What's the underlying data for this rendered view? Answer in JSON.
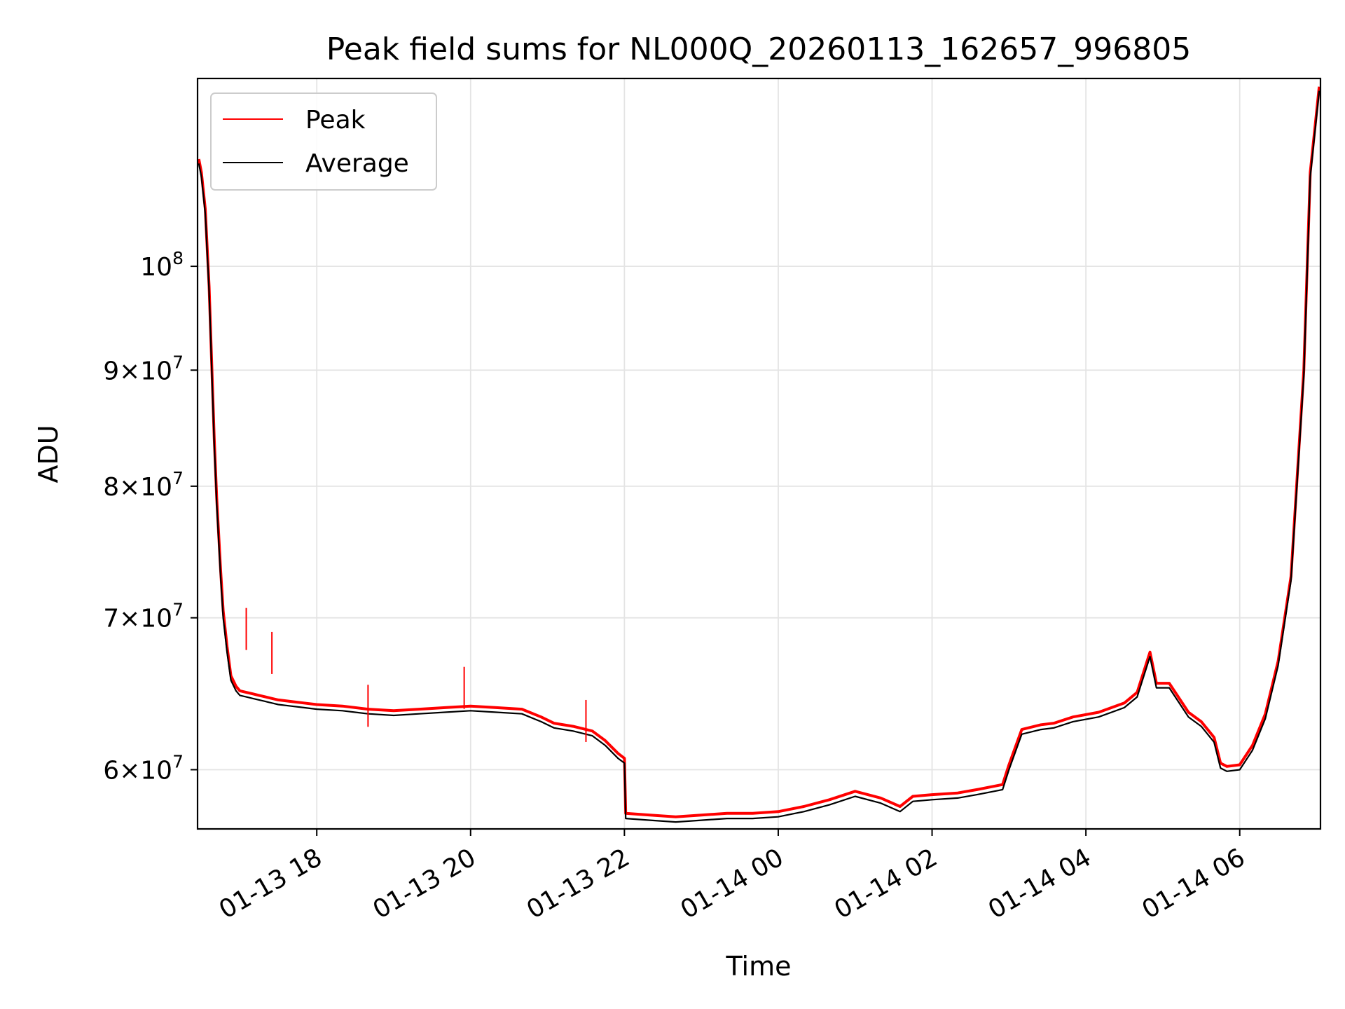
{
  "chart_data": {
    "type": "line",
    "title": "Peak field sums for NL000Q_20260113_162657_996805",
    "xlabel": "Time",
    "ylabel": "ADU",
    "yscale": "log",
    "grid": true,
    "legend_position": "upper-left",
    "xlim": [
      "2026-01-13 16:27",
      "2026-01-14 07:03"
    ],
    "ylim": [
      56500000,
      121000000
    ],
    "x_ticks": [
      {
        "t": "2026-01-13 18:00",
        "label": "01-13 18"
      },
      {
        "t": "2026-01-13 20:00",
        "label": "01-13 20"
      },
      {
        "t": "2026-01-13 22:00",
        "label": "01-13 22"
      },
      {
        "t": "2026-01-14 00:00",
        "label": "01-14 00"
      },
      {
        "t": "2026-01-14 02:00",
        "label": "01-14 02"
      },
      {
        "t": "2026-01-14 04:00",
        "label": "01-14 04"
      },
      {
        "t": "2026-01-14 06:00",
        "label": "01-14 06"
      }
    ],
    "y_ticks": [
      {
        "value": 60000000,
        "mantissa": "6",
        "base": "10",
        "exp": "7"
      },
      {
        "value": 70000000,
        "mantissa": "7",
        "base": "10",
        "exp": "7"
      },
      {
        "value": 80000000,
        "mantissa": "8",
        "base": "10",
        "exp": "7"
      },
      {
        "value": 90000000,
        "mantissa": "9",
        "base": "10",
        "exp": "7"
      },
      {
        "value": 100000000,
        "mantissa": "",
        "base": "10",
        "exp": "8"
      }
    ],
    "series": [
      {
        "name": "Peak",
        "color": "#ff0000",
        "x": [
          "2026-01-13 16:28",
          "2026-01-13 16:30",
          "2026-01-13 16:33",
          "2026-01-13 16:36",
          "2026-01-13 16:40",
          "2026-01-13 16:42",
          "2026-01-13 16:45",
          "2026-01-13 16:47",
          "2026-01-13 16:50",
          "2026-01-13 16:53",
          "2026-01-13 16:57",
          "2026-01-13 17:00",
          "2026-01-13 17:05",
          "2026-01-13 17:10",
          "2026-01-13 17:15",
          "2026-01-13 17:20",
          "2026-01-13 17:25",
          "2026-01-13 17:30",
          "2026-01-13 17:40",
          "2026-01-13 17:50",
          "2026-01-13 18:00",
          "2026-01-13 18:20",
          "2026-01-13 18:40",
          "2026-01-13 19:00",
          "2026-01-13 19:20",
          "2026-01-13 19:40",
          "2026-01-13 20:00",
          "2026-01-13 20:20",
          "2026-01-13 20:40",
          "2026-01-13 20:55",
          "2026-01-13 21:05",
          "2026-01-13 21:20",
          "2026-01-13 21:35",
          "2026-01-13 21:45",
          "2026-01-13 21:55",
          "2026-01-13 22:00",
          "2026-01-13 22:01",
          "2026-01-13 22:20",
          "2026-01-13 22:40",
          "2026-01-13 23:00",
          "2026-01-13 23:20",
          "2026-01-13 23:40",
          "2026-01-14 00:00",
          "2026-01-14 00:20",
          "2026-01-14 00:40",
          "2026-01-14 01:00",
          "2026-01-14 01:20",
          "2026-01-14 01:35",
          "2026-01-14 01:45",
          "2026-01-14 02:00",
          "2026-01-14 02:20",
          "2026-01-14 02:35",
          "2026-01-14 02:55",
          "2026-01-14 03:00",
          "2026-01-14 03:10",
          "2026-01-14 03:25",
          "2026-01-14 03:35",
          "2026-01-14 03:50",
          "2026-01-14 04:10",
          "2026-01-14 04:30",
          "2026-01-14 04:40",
          "2026-01-14 04:50",
          "2026-01-14 04:55",
          "2026-01-14 05:05",
          "2026-01-14 05:20",
          "2026-01-14 05:30",
          "2026-01-14 05:40",
          "2026-01-14 05:45",
          "2026-01-14 05:50",
          "2026-01-14 06:00",
          "2026-01-14 06:10",
          "2026-01-14 06:20",
          "2026-01-14 06:30",
          "2026-01-14 06:40",
          "2026-01-14 06:50",
          "2026-01-14 06:55",
          "2026-01-14 07:02"
        ],
        "y": [
          111500000,
          110000000,
          106000000,
          98000000,
          84000000,
          79000000,
          73500000,
          70500000,
          68000000,
          66000000,
          65300000,
          65000000,
          64900000,
          64800000,
          64700000,
          64600000,
          64500000,
          64400000,
          64300000,
          64200000,
          64100000,
          64000000,
          63800000,
          63700000,
          63800000,
          63900000,
          64000000,
          63900000,
          63800000,
          63300000,
          62900000,
          62700000,
          62400000,
          61800000,
          61000000,
          60700000,
          57400000,
          57300000,
          57200000,
          57300000,
          57400000,
          57400000,
          57500000,
          57800000,
          58200000,
          58700000,
          58300000,
          57800000,
          58400000,
          58500000,
          58600000,
          58800000,
          59100000,
          60300000,
          62500000,
          62800000,
          62900000,
          63300000,
          63600000,
          64200000,
          64900000,
          67600000,
          65500000,
          65500000,
          63600000,
          63000000,
          62000000,
          60400000,
          60200000,
          60300000,
          61500000,
          63500000,
          67000000,
          73000000,
          90000000,
          110000000,
          120000000
        ]
      },
      {
        "name": "Average",
        "color": "#000000",
        "x": [
          "2026-01-13 16:28",
          "2026-01-13 16:30",
          "2026-01-13 16:33",
          "2026-01-13 16:36",
          "2026-01-13 16:40",
          "2026-01-13 16:42",
          "2026-01-13 16:45",
          "2026-01-13 16:47",
          "2026-01-13 16:50",
          "2026-01-13 16:53",
          "2026-01-13 16:57",
          "2026-01-13 17:00",
          "2026-01-13 17:05",
          "2026-01-13 17:10",
          "2026-01-13 17:15",
          "2026-01-13 17:20",
          "2026-01-13 17:25",
          "2026-01-13 17:30",
          "2026-01-13 17:40",
          "2026-01-13 17:50",
          "2026-01-13 18:00",
          "2026-01-13 18:20",
          "2026-01-13 18:40",
          "2026-01-13 19:00",
          "2026-01-13 19:20",
          "2026-01-13 19:40",
          "2026-01-13 20:00",
          "2026-01-13 20:20",
          "2026-01-13 20:40",
          "2026-01-13 20:55",
          "2026-01-13 21:05",
          "2026-01-13 21:20",
          "2026-01-13 21:35",
          "2026-01-13 21:45",
          "2026-01-13 21:55",
          "2026-01-13 22:00",
          "2026-01-13 22:01",
          "2026-01-13 22:20",
          "2026-01-13 22:40",
          "2026-01-13 23:00",
          "2026-01-13 23:20",
          "2026-01-13 23:40",
          "2026-01-14 00:00",
          "2026-01-14 00:20",
          "2026-01-14 00:40",
          "2026-01-14 01:00",
          "2026-01-14 01:20",
          "2026-01-14 01:35",
          "2026-01-14 01:45",
          "2026-01-14 02:00",
          "2026-01-14 02:20",
          "2026-01-14 02:35",
          "2026-01-14 02:55",
          "2026-01-14 03:00",
          "2026-01-14 03:10",
          "2026-01-14 03:25",
          "2026-01-14 03:35",
          "2026-01-14 03:50",
          "2026-01-14 04:10",
          "2026-01-14 04:30",
          "2026-01-14 04:40",
          "2026-01-14 04:50",
          "2026-01-14 04:55",
          "2026-01-14 05:05",
          "2026-01-14 05:20",
          "2026-01-14 05:30",
          "2026-01-14 05:40",
          "2026-01-14 05:45",
          "2026-01-14 05:50",
          "2026-01-14 06:00",
          "2026-01-14 06:10",
          "2026-01-14 06:20",
          "2026-01-14 06:30",
          "2026-01-14 06:40",
          "2026-01-14 06:50",
          "2026-01-14 06:55",
          "2026-01-14 07:02"
        ],
        "y": [
          111000000,
          109500000,
          105500000,
          97500000,
          83500000,
          78500000,
          73000000,
          70000000,
          67600000,
          65700000,
          65000000,
          64700000,
          64600000,
          64500000,
          64400000,
          64300000,
          64200000,
          64100000,
          64000000,
          63900000,
          63800000,
          63700000,
          63500000,
          63400000,
          63500000,
          63600000,
          63700000,
          63600000,
          63500000,
          63000000,
          62600000,
          62400000,
          62100000,
          61500000,
          60700000,
          60400000,
          57100000,
          57000000,
          56900000,
          57000000,
          57100000,
          57100000,
          57200000,
          57500000,
          57900000,
          58400000,
          58000000,
          57500000,
          58100000,
          58200000,
          58300000,
          58500000,
          58800000,
          60000000,
          62200000,
          62500000,
          62600000,
          63000000,
          63300000,
          63900000,
          64600000,
          67300000,
          65200000,
          65200000,
          63300000,
          62700000,
          61700000,
          60100000,
          59900000,
          60000000,
          61200000,
          63200000,
          66700000,
          72700000,
          89500000,
          109500000,
          119500000
        ]
      }
    ],
    "spikes": [
      {
        "series": "Peak",
        "x": "2026-01-13 17:05",
        "y": 70700000
      },
      {
        "series": "Peak",
        "x": "2026-01-13 17:25",
        "y": 69000000
      },
      {
        "series": "Peak",
        "x": "2026-01-13 18:40",
        "y": 65400000
      },
      {
        "series": "Peak",
        "x": "2026-01-13 19:55",
        "y": 66600000
      },
      {
        "series": "Peak",
        "x": "2026-01-13 21:30",
        "y": 64400000
      }
    ]
  }
}
